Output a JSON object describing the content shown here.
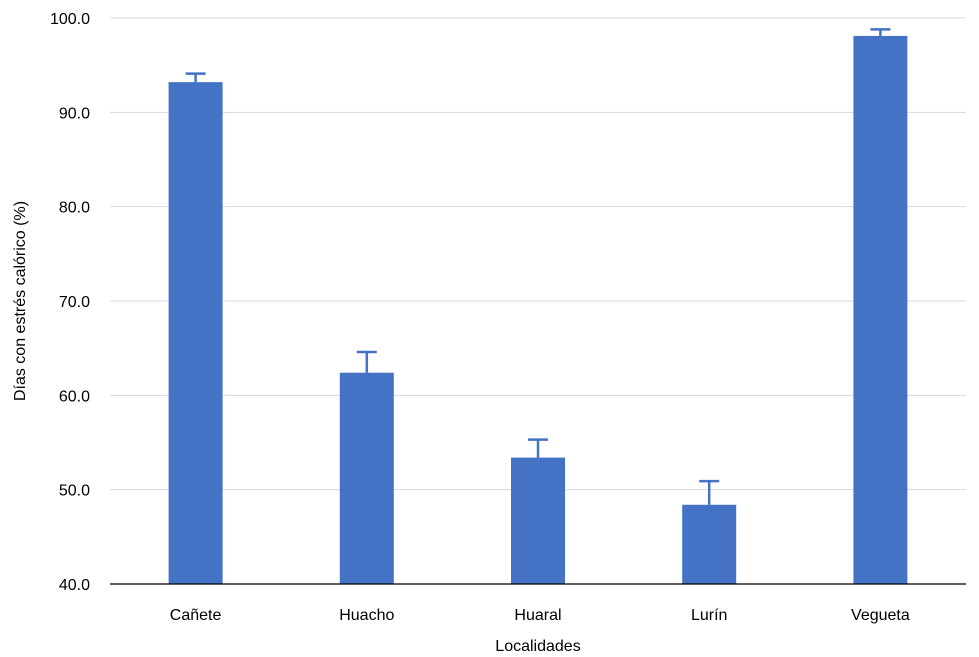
{
  "chart_data": {
    "type": "bar",
    "title": "",
    "xlabel": "Localidades",
    "ylabel": "Días con estrés calórico (%)",
    "ylim": [
      40,
      100
    ],
    "yticks": [
      40,
      50,
      60,
      70,
      80,
      90,
      100
    ],
    "ytick_labels": [
      "40.0",
      "50.0",
      "60.0",
      "70.0",
      "80.0",
      "90.0",
      "100.0"
    ],
    "categories": [
      "Cañete",
      "Huacho",
      "Huaral",
      "Lurín",
      "Vegueta"
    ],
    "values": [
      93.2,
      62.4,
      53.4,
      48.4,
      98.1
    ],
    "error_plus": [
      0.9,
      2.2,
      1.9,
      2.5,
      0.7
    ],
    "bar_color": "#4472c4",
    "grid": "horizontal",
    "legend": "none"
  }
}
